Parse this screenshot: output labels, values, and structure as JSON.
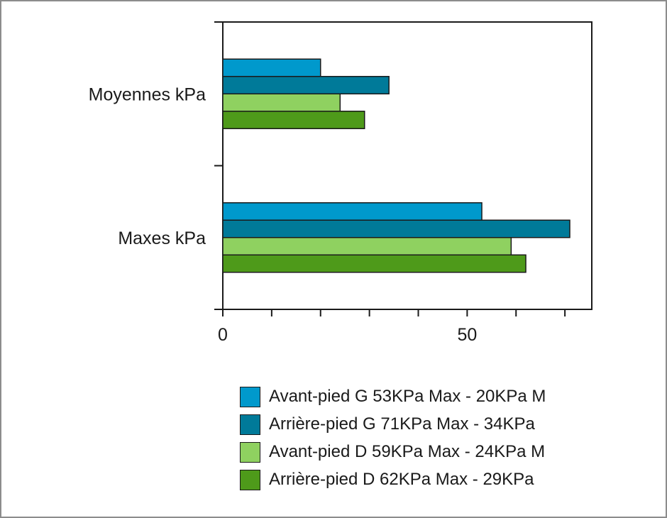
{
  "chart_data": {
    "type": "bar",
    "orientation": "horizontal",
    "categories": [
      "Moyennes kPa",
      "Maxes kPa"
    ],
    "series": [
      {
        "name": "Avant-pied G 53KPa Max - 20KPa M",
        "values": [
          20,
          53
        ],
        "color": "#0099cc"
      },
      {
        "name": "Arrière-pied G 71KPa Max - 34KPa",
        "values": [
          34,
          71
        ],
        "color": "#007a99"
      },
      {
        "name": "Avant-pied D 59KPa Max - 24KPa M",
        "values": [
          24,
          59
        ],
        "color": "#8fd160"
      },
      {
        "name": "Arrière-pied D 62KPa Max - 29KPa",
        "values": [
          29,
          62
        ],
        "color": "#4e9a1a"
      }
    ],
    "x_ticks": [
      0,
      10,
      20,
      30,
      40,
      50,
      60,
      70
    ],
    "x_tick_labels": {
      "0": "0",
      "50": "50"
    },
    "xlim": [
      0,
      75.5
    ],
    "grid": false,
    "legend_position": "bottom-right"
  }
}
